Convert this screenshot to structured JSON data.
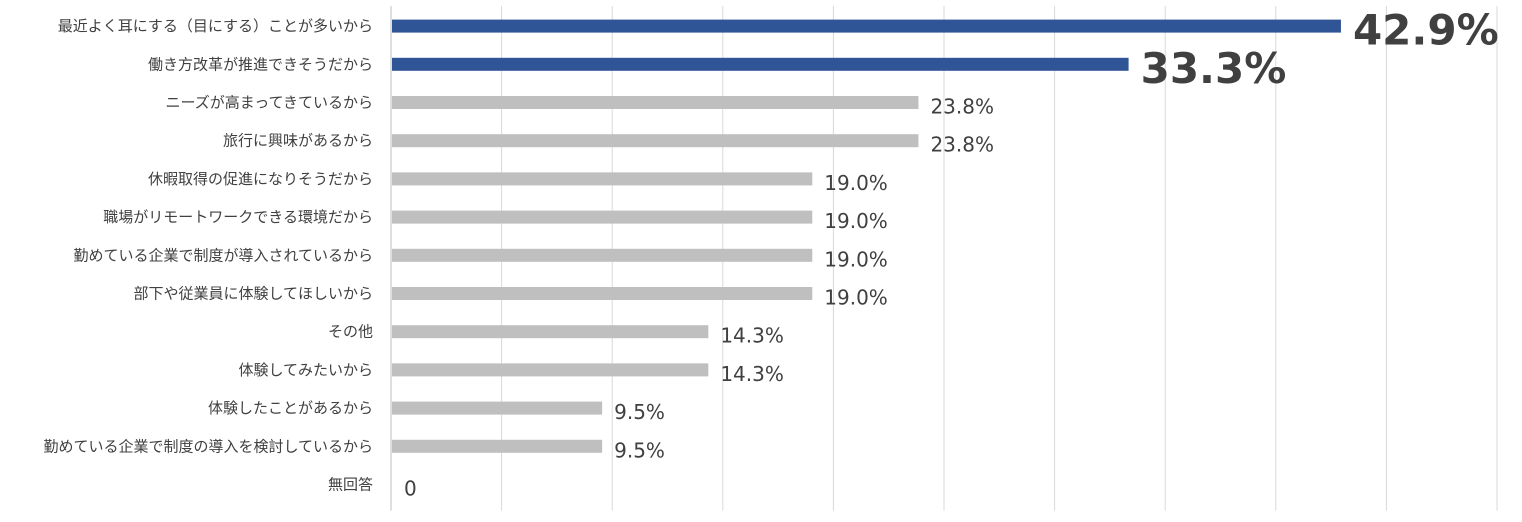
{
  "chart_data": {
    "type": "bar",
    "orientation": "horizontal",
    "categories": [
      "最近よく耳にする（目にする）ことが多いから",
      "働き方改革が推進できそうだから",
      "ニーズが高まってきているから",
      "旅行に興味があるから",
      "休暇取得の促進になりそうだから",
      "職場がリモートワークできる環境だから",
      "勤めている企業で制度が導入されているから",
      "部下や従業員に体験してほしいから",
      "その他",
      "体験してみたいから",
      "体験したことがあるから",
      "勤めている企業で制度の導入を検討しているから",
      "無回答"
    ],
    "values": [
      42.9,
      33.3,
      23.8,
      23.8,
      19.0,
      19.0,
      19.0,
      19.0,
      14.3,
      14.3,
      9.5,
      9.5,
      0
    ],
    "value_labels": [
      "42.9%",
      "33.3%",
      "23.8%",
      "23.8%",
      "19.0%",
      "19.0%",
      "19.0%",
      "19.0%",
      "14.3%",
      "14.3%",
      "9.5%",
      "9.5%",
      "0"
    ],
    "highlighted": [
      true,
      true,
      false,
      false,
      false,
      false,
      false,
      false,
      false,
      false,
      false,
      false,
      false
    ],
    "xlim": [
      0,
      50
    ],
    "grid": true,
    "title": "",
    "xlabel": "",
    "ylabel": "",
    "colors": {
      "highlight": "#2f5597",
      "normal": "#bfbfbf",
      "label": "#404040"
    }
  }
}
